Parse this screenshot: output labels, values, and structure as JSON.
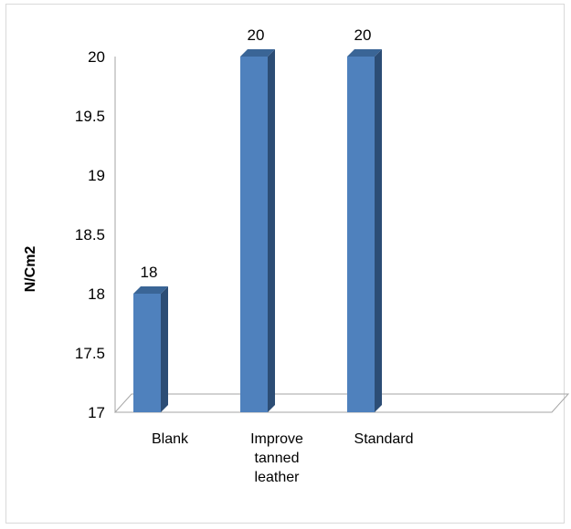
{
  "chart_data": {
    "type": "bar",
    "style": "3d-column",
    "categories": [
      "Blank",
      "Improve tanned leather",
      "Standard"
    ],
    "category_lines": [
      [
        "Blank"
      ],
      [
        "Improve",
        "tanned",
        "leather"
      ],
      [
        "Standard"
      ]
    ],
    "values": [
      18,
      20,
      20
    ],
    "data_labels": [
      "18",
      "20",
      "20"
    ],
    "title": "",
    "xlabel": "",
    "ylabel": "N/Cm2",
    "ylim": [
      17,
      20
    ],
    "yticks": [
      17,
      17.5,
      18,
      18.5,
      19,
      19.5,
      20
    ],
    "ytick_labels": [
      "17",
      "17.5",
      "18",
      "18.5",
      "19",
      "19.5",
      "20"
    ],
    "grid": false,
    "legend": "none",
    "colors": {
      "bar_front": "#4f81bd",
      "bar_side": "#2c4d75",
      "bar_top": "#3a6596",
      "axis": "#a6a6a6"
    }
  }
}
